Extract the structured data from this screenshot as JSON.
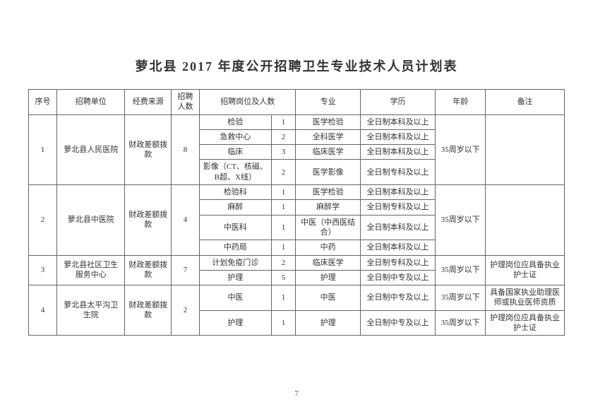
{
  "title": "萝北县 2017 年度公开招聘卫生专业技术人员计划表",
  "page_number": "7",
  "headers": {
    "seq": "序号",
    "unit": "招聘单位",
    "fund": "经费来源",
    "total": "招聘人数",
    "post": "招聘岗位及人数",
    "major": "专业",
    "edu": "学历",
    "age": "年龄",
    "note": "备注"
  },
  "rows": [
    {
      "seq": "1",
      "unit": "萝北县人民医院",
      "fund": "财政差额拨款",
      "total": "8",
      "posts": [
        {
          "name": "检验",
          "num": "1",
          "major": "医学检验",
          "edu": "全日制本科及以上"
        },
        {
          "name": "急救中心",
          "num": "2",
          "major": "全科医学",
          "edu": "全日制本科及以上"
        },
        {
          "name": "临床",
          "num": "3",
          "major": "临床医学",
          "edu": "全日制本科及以上"
        },
        {
          "name": "影像（CT、核磁、B超、X线）",
          "num": "2",
          "major": "医学影像",
          "edu": "全日制专科及以上"
        }
      ],
      "age": "35周岁以下",
      "note": ""
    },
    {
      "seq": "2",
      "unit": "萝北县中医院",
      "fund": "财政差额拨款",
      "total": "4",
      "posts": [
        {
          "name": "检验科",
          "num": "1",
          "major": "医学检验",
          "edu": "全日制本科及以上"
        },
        {
          "name": "麻醉",
          "num": "1",
          "major": "麻醉学",
          "edu": "全日制专科及以上"
        },
        {
          "name": "中医科",
          "num": "1",
          "major": "中医（中西医结合）",
          "edu": "全日制本科及以上"
        },
        {
          "name": "中药局",
          "num": "1",
          "major": "中药",
          "edu": "全日制本科及以上"
        }
      ],
      "age": "35周岁以下",
      "note": ""
    },
    {
      "seq": "3",
      "unit": "萝北县社区卫生服务中心",
      "fund": "财政差额拨款",
      "total": "7",
      "posts": [
        {
          "name": "计划免疫门诊",
          "num": "2",
          "major": "临床医学",
          "edu": "全日制专科及以上"
        },
        {
          "name": "护理",
          "num": "5",
          "major": "护理",
          "edu": "全日制中专及以上"
        }
      ],
      "age": "35周岁以下",
      "note": "护理岗位应具备执业护士证"
    },
    {
      "seq": "4",
      "unit": "萝北县太平沟卫生院",
      "fund": "财政差额拨款",
      "total": "2",
      "posts": [
        {
          "name": "中医",
          "num": "1",
          "major": "中医",
          "edu": "全日制中专及以上",
          "age": "35周岁以下",
          "note": "具备国家执业助理医师或执业医师资质"
        },
        {
          "name": "护理",
          "num": "1",
          "major": "护理",
          "edu": "全日制中专及以上",
          "age": "35周岁以下",
          "note": "护理岗位应具备执业护士证"
        }
      ]
    }
  ],
  "style": {
    "bg": "#ffffff",
    "border": "#666666",
    "text": "#333333",
    "title_fontsize": 18,
    "cell_fontsize": 11
  }
}
